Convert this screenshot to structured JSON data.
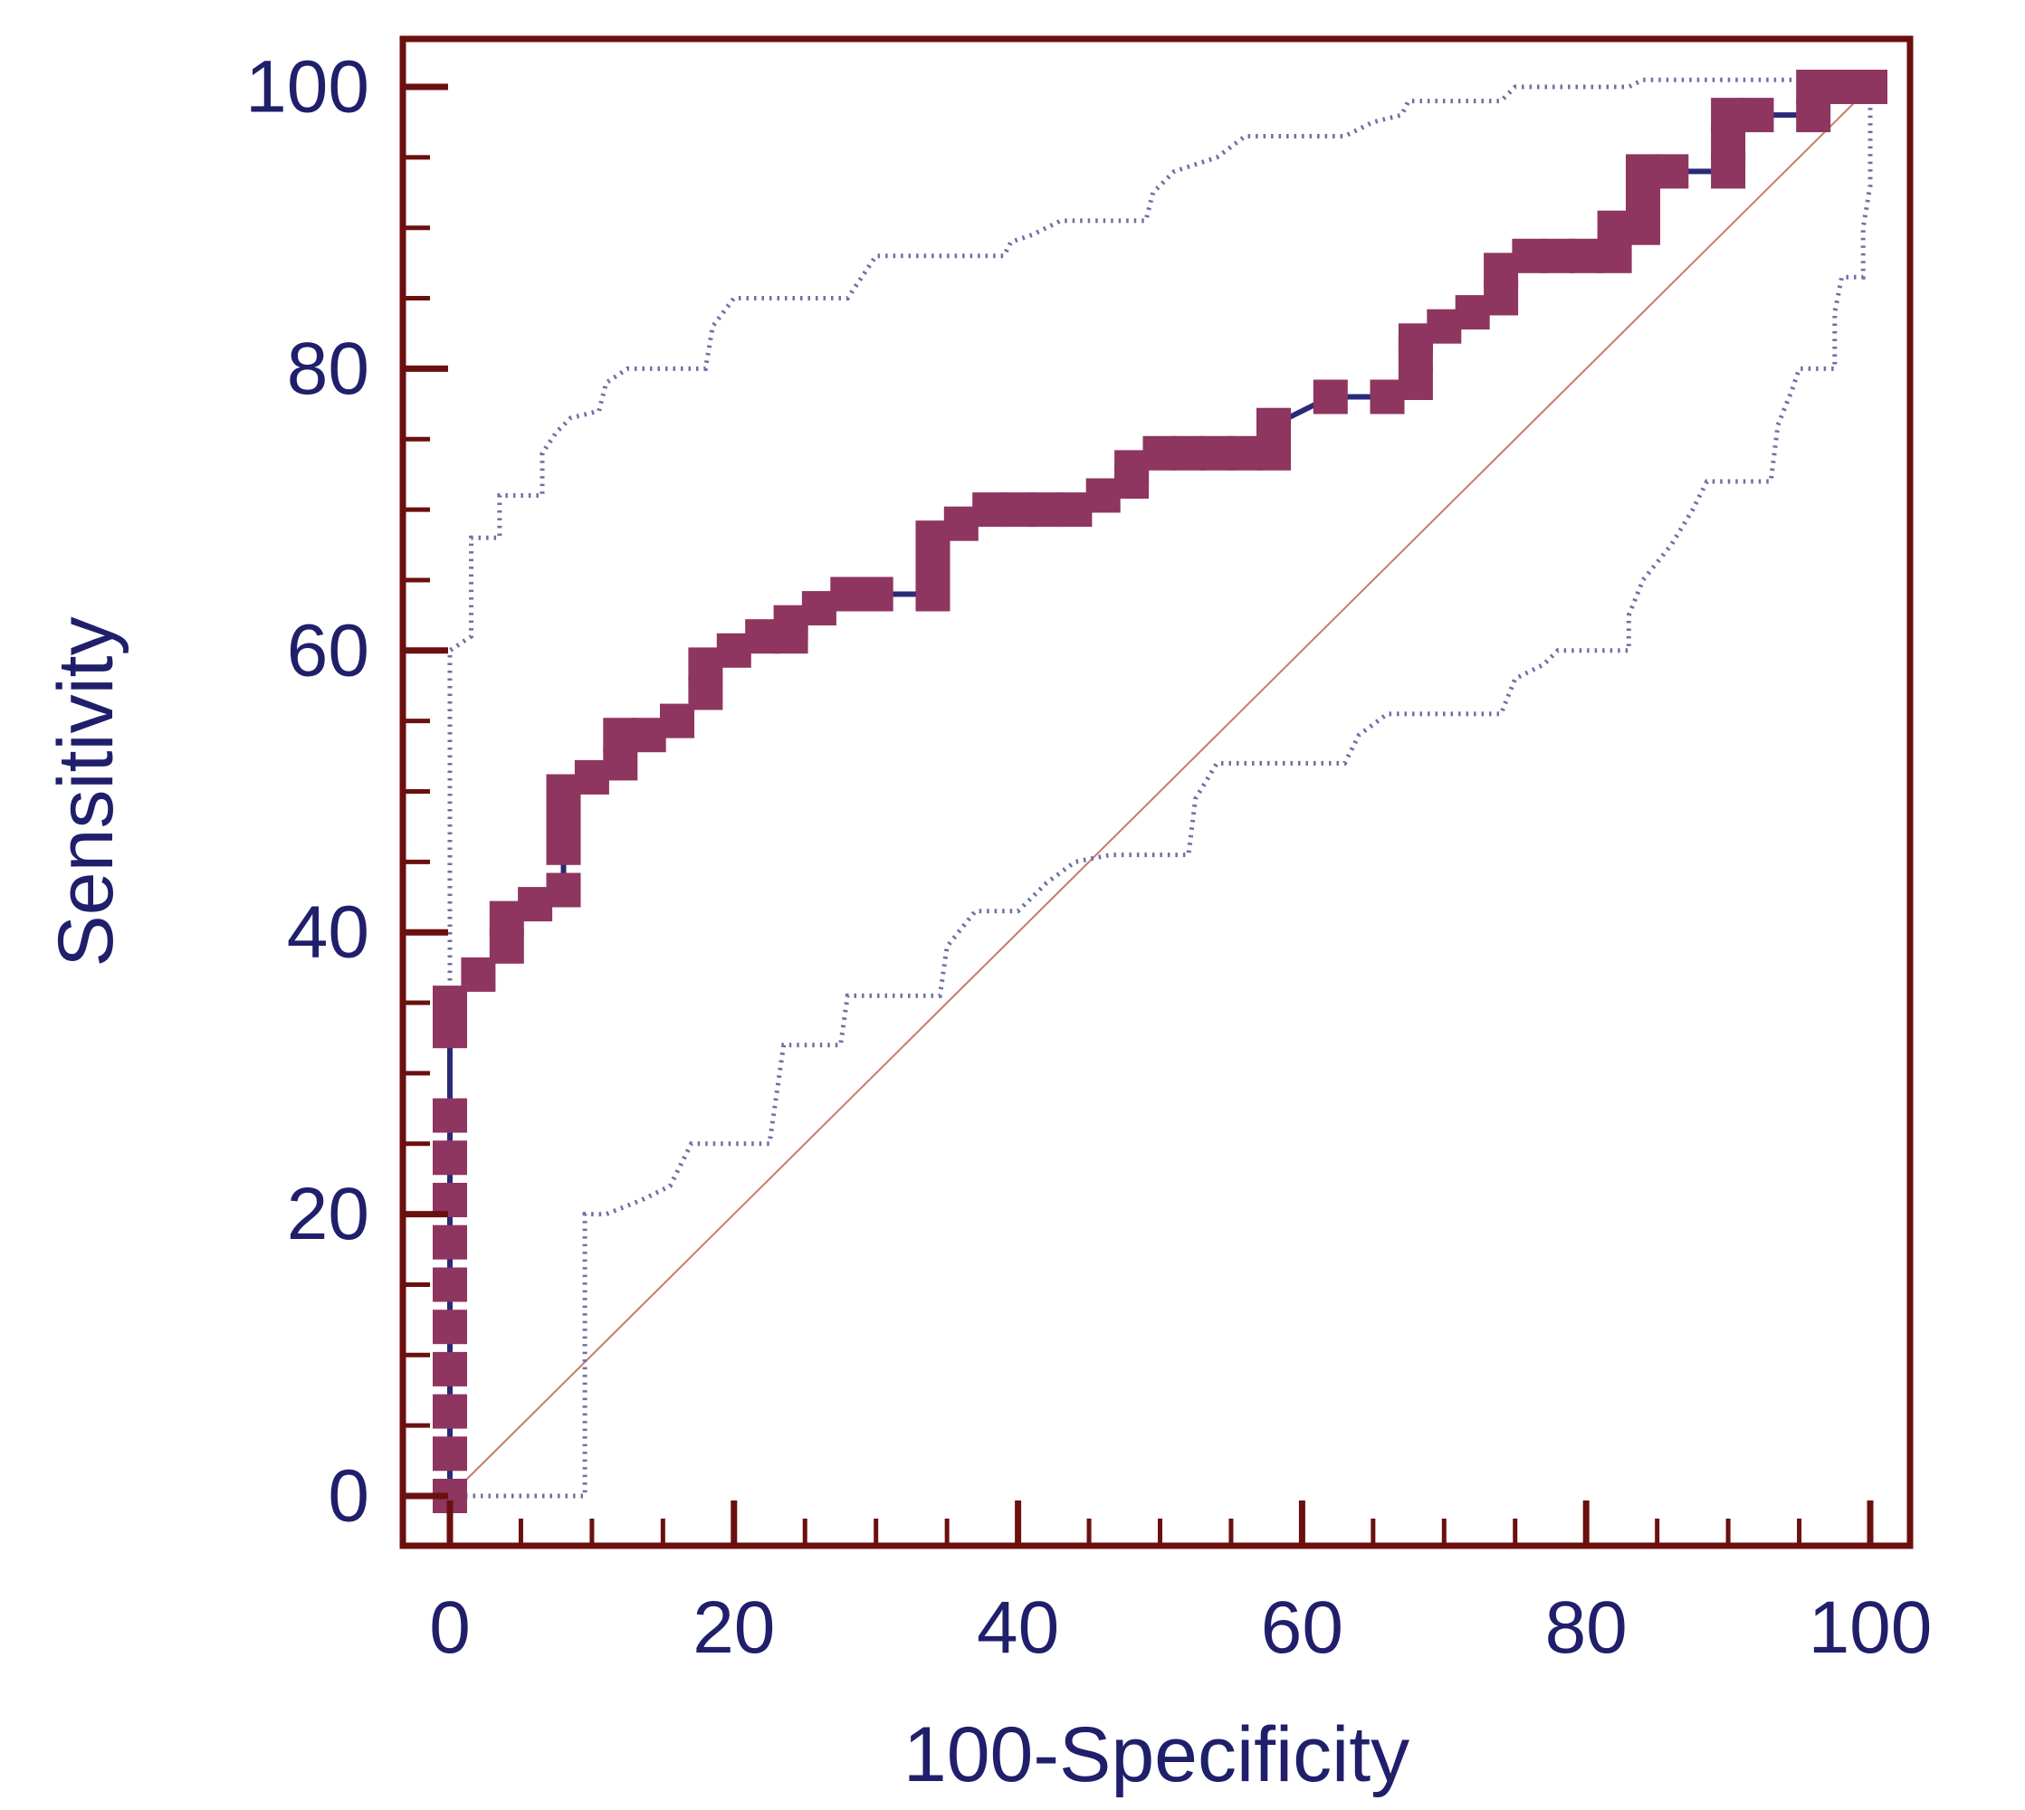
{
  "chart_data": {
    "type": "line",
    "title": "",
    "xlabel": "100-Specificity",
    "ylabel": "Sensitivity",
    "xlim": [
      0,
      100
    ],
    "ylim": [
      0,
      100
    ],
    "x_ticks": [
      "0",
      "20",
      "40",
      "60",
      "80",
      "100"
    ],
    "y_ticks": [
      "0",
      "20",
      "40",
      "60",
      "80",
      "100"
    ],
    "x_minor_step": 5,
    "y_minor_step": 5,
    "grid": false,
    "legend": "none",
    "colors": {
      "frame": "#6b0f0f",
      "text": "#1f1f6b",
      "roc_marker": "#8e3560",
      "roc_line": "#2a2a7a",
      "ci_line": "#6e6ea6",
      "reference_line": "#c97a6a"
    },
    "series": [
      {
        "role": "roc",
        "style": "step-markers",
        "points": [
          [
            0,
            0
          ],
          [
            0,
            3
          ],
          [
            0,
            6
          ],
          [
            0,
            9
          ],
          [
            0,
            12
          ],
          [
            0,
            15
          ],
          [
            0,
            18
          ],
          [
            0,
            21
          ],
          [
            0,
            24
          ],
          [
            0,
            27
          ],
          [
            0,
            33
          ],
          [
            0,
            35
          ],
          [
            2,
            37
          ],
          [
            4,
            39
          ],
          [
            4,
            41
          ],
          [
            6,
            42
          ],
          [
            8,
            43
          ],
          [
            8,
            46
          ],
          [
            8,
            48
          ],
          [
            8,
            50
          ],
          [
            10,
            51
          ],
          [
            12,
            52
          ],
          [
            12,
            54
          ],
          [
            14,
            54
          ],
          [
            16,
            55
          ],
          [
            18,
            57
          ],
          [
            18,
            59
          ],
          [
            20,
            60
          ],
          [
            22,
            61
          ],
          [
            24,
            61
          ],
          [
            24,
            62
          ],
          [
            26,
            63
          ],
          [
            28,
            64
          ],
          [
            30,
            64
          ],
          [
            34,
            64
          ],
          [
            34,
            66
          ],
          [
            34,
            68
          ],
          [
            36,
            69
          ],
          [
            38,
            70
          ],
          [
            40,
            70
          ],
          [
            42,
            70
          ],
          [
            44,
            70
          ],
          [
            46,
            71
          ],
          [
            48,
            72
          ],
          [
            48,
            73
          ],
          [
            50,
            74
          ],
          [
            52,
            74
          ],
          [
            54,
            74
          ],
          [
            56,
            74
          ],
          [
            58,
            74
          ],
          [
            58,
            76
          ],
          [
            62,
            78
          ],
          [
            66,
            78
          ],
          [
            68,
            79
          ],
          [
            68,
            81
          ],
          [
            68,
            82
          ],
          [
            70,
            83
          ],
          [
            72,
            84
          ],
          [
            74,
            85
          ],
          [
            74,
            87
          ],
          [
            76,
            88
          ],
          [
            78,
            88
          ],
          [
            80,
            88
          ],
          [
            82,
            88
          ],
          [
            82,
            90
          ],
          [
            84,
            90
          ],
          [
            84,
            92
          ],
          [
            84,
            94
          ],
          [
            86,
            94
          ],
          [
            90,
            94
          ],
          [
            90,
            96
          ],
          [
            90,
            98
          ],
          [
            92,
            98
          ],
          [
            96,
            98
          ],
          [
            96,
            100
          ],
          [
            98,
            100
          ],
          [
            100,
            100
          ]
        ]
      },
      {
        "role": "ci-upper",
        "style": "dotted",
        "points": [
          [
            0,
            0
          ],
          [
            0,
            37
          ],
          [
            0,
            60
          ],
          [
            1.5,
            61
          ],
          [
            1.5,
            68
          ],
          [
            3.5,
            68
          ],
          [
            3.5,
            71
          ],
          [
            6.5,
            71
          ],
          [
            6.5,
            74
          ],
          [
            7.5,
            75.5
          ],
          [
            8.5,
            76.5
          ],
          [
            10.5,
            77
          ],
          [
            11,
            79
          ],
          [
            12.5,
            80
          ],
          [
            18,
            80
          ],
          [
            18.5,
            83
          ],
          [
            20,
            85
          ],
          [
            28,
            85
          ],
          [
            29,
            86.5
          ],
          [
            30,
            88
          ],
          [
            39,
            88
          ],
          [
            39.5,
            89
          ],
          [
            41,
            89.5
          ],
          [
            43,
            90.5
          ],
          [
            49,
            90.5
          ],
          [
            49.5,
            92.5
          ],
          [
            51,
            94
          ],
          [
            54,
            95
          ],
          [
            56,
            96.5
          ],
          [
            63,
            96.5
          ],
          [
            65,
            97.5
          ],
          [
            67,
            98
          ],
          [
            67.5,
            99
          ],
          [
            74,
            99
          ],
          [
            75,
            100
          ],
          [
            83,
            100
          ],
          [
            84,
            100.5
          ],
          [
            100,
            100.5
          ],
          [
            100,
            100
          ]
        ]
      },
      {
        "role": "ci-lower",
        "style": "dotted",
        "points": [
          [
            0,
            0
          ],
          [
            9.5,
            0
          ],
          [
            9.5,
            20
          ],
          [
            11,
            20
          ],
          [
            13.5,
            21
          ],
          [
            15.5,
            22
          ],
          [
            17,
            25
          ],
          [
            22.5,
            25
          ],
          [
            23.5,
            32
          ],
          [
            27.5,
            32
          ],
          [
            28,
            35.5
          ],
          [
            34.5,
            35.5
          ],
          [
            35,
            39
          ],
          [
            37,
            41.5
          ],
          [
            40,
            41.5
          ],
          [
            42,
            43.5
          ],
          [
            44,
            45
          ],
          [
            46.5,
            45.5
          ],
          [
            52,
            45.5
          ],
          [
            52.5,
            49.5
          ],
          [
            54,
            52
          ],
          [
            63,
            52
          ],
          [
            64,
            54
          ],
          [
            66,
            55.5
          ],
          [
            74,
            55.5
          ],
          [
            75,
            58
          ],
          [
            77,
            59
          ],
          [
            78,
            60
          ],
          [
            83,
            60
          ],
          [
            83,
            62.5
          ],
          [
            84,
            65
          ],
          [
            86,
            67.5
          ],
          [
            87.5,
            70
          ],
          [
            88.5,
            72
          ],
          [
            93,
            72
          ],
          [
            93.5,
            76
          ],
          [
            94.5,
            78.5
          ],
          [
            95,
            80
          ],
          [
            97.5,
            80
          ],
          [
            97.5,
            84
          ],
          [
            98,
            86.5
          ],
          [
            99.5,
            86.5
          ],
          [
            99.5,
            90
          ],
          [
            100,
            93
          ],
          [
            100,
            100
          ]
        ]
      },
      {
        "role": "reference",
        "style": "thin",
        "points": [
          [
            0,
            0
          ],
          [
            100,
            100
          ]
        ]
      }
    ]
  }
}
